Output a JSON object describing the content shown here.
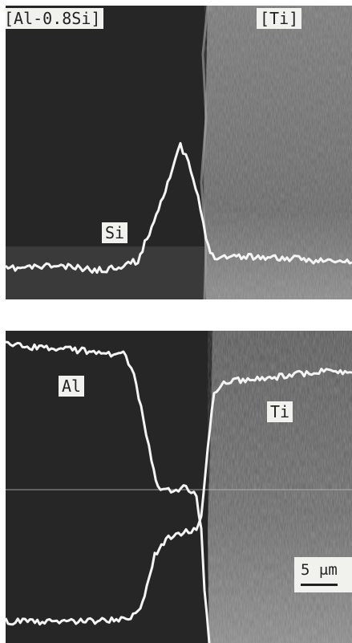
{
  "top_panel": {
    "label_left": "[Al-0.8Si]",
    "label_right": "[Ti]",
    "trace_label": "Si"
  },
  "bottom_panel": {
    "label_al": "Al",
    "label_ti": "Ti",
    "scale_bar": "5 μm"
  },
  "colors": {
    "background_dark": "#262626",
    "ti_region": "#777777",
    "trace": "#f4f4f4",
    "label_box": "#f1f1ee"
  }
}
